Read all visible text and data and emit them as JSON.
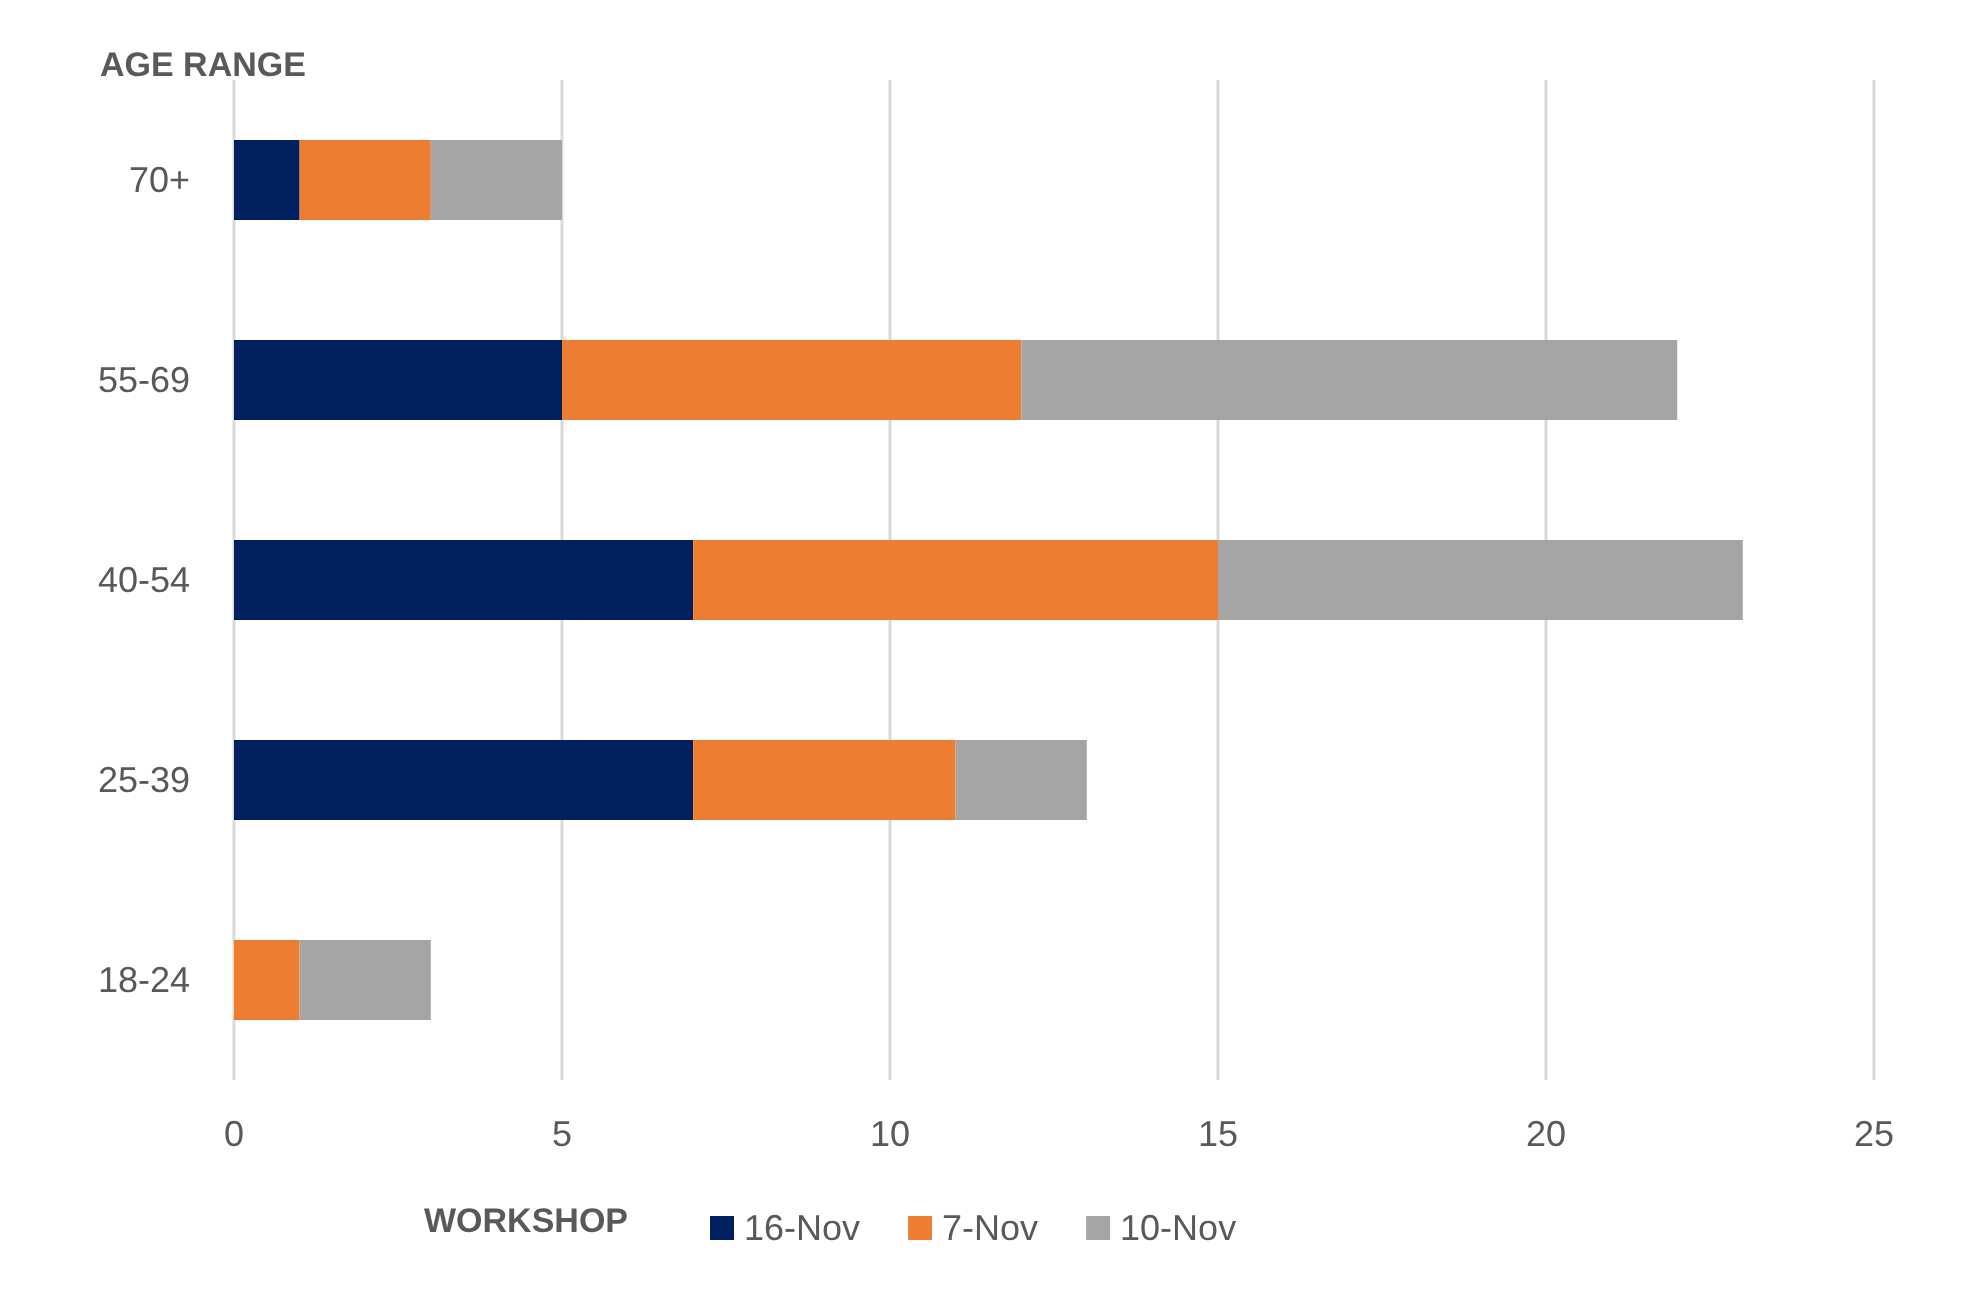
{
  "chart_data": {
    "type": "bar",
    "orientation": "horizontal",
    "stacked": true,
    "ylabel": "AGE RANGE",
    "legend_title": "WORKSHOP",
    "categories": [
      "70+",
      "55-69",
      "40-54",
      "25-39",
      "18-24"
    ],
    "series": [
      {
        "name": "16-Nov",
        "color": "#002060",
        "values": [
          1,
          5,
          7,
          7,
          0
        ]
      },
      {
        "name": "7-Nov",
        "color": "#ed7d31",
        "values": [
          2,
          7,
          8,
          4,
          1
        ]
      },
      {
        "name": "10-Nov",
        "color": "#a5a5a5",
        "values": [
          2,
          10,
          8,
          2,
          2
        ]
      }
    ],
    "xlim": [
      0,
      25
    ],
    "xticks": [
      0,
      5,
      10,
      15,
      20,
      25
    ],
    "grid": "x",
    "legend": "bottom"
  }
}
